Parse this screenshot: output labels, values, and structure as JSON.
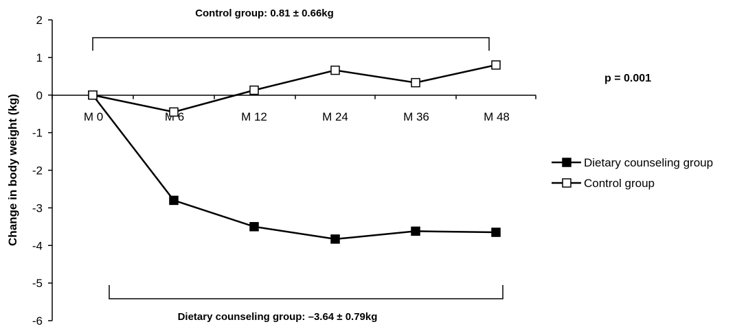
{
  "chart_data": {
    "type": "line",
    "categories": [
      "M 0",
      "M 6",
      "M 12",
      "M 24",
      "M 36",
      "M 48"
    ],
    "series": [
      {
        "name": "Dietary counseling group",
        "values": [
          0,
          -2.8,
          -3.5,
          -3.83,
          -3.62,
          -3.65
        ],
        "marker": "filled-square",
        "color": "#000000"
      },
      {
        "name": "Control group",
        "values": [
          0,
          -0.45,
          0.13,
          0.66,
          0.33,
          0.8
        ],
        "marker": "open-square",
        "color": "#000000"
      }
    ],
    "title": "",
    "xlabel": "",
    "ylabel": "Change in body weight (kg)",
    "ylim": [
      -6,
      2
    ],
    "yticks": [
      "2",
      "1",
      "0",
      "-1",
      "-2",
      "-3",
      "-4",
      "-5",
      "-6"
    ],
    "grid": false,
    "legend_position": "right",
    "annotations": {
      "control_bracket": "Control group: 0.81 ± 0.66kg",
      "dietary_bracket": "Dietary counseling group: –3.64 ± 0.79kg",
      "p_value": "p = 0.001"
    }
  }
}
